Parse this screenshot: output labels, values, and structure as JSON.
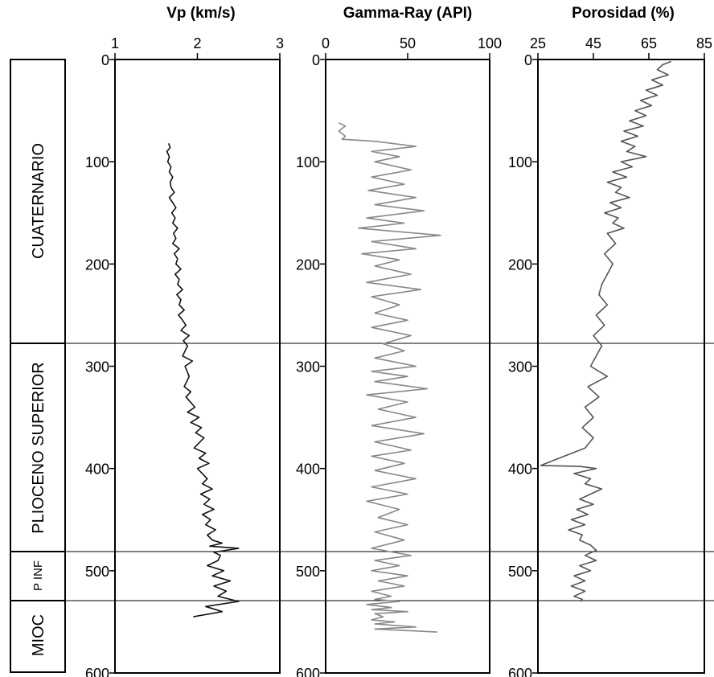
{
  "chart_data": [
    {
      "type": "line",
      "title": "Vp (km/s)",
      "xlim": [
        1,
        3
      ],
      "xticks": [
        "1",
        "2",
        "3"
      ],
      "ylim": [
        0,
        600
      ],
      "yticks": [
        "0",
        "100",
        "200",
        "300",
        "400",
        "500",
        "600"
      ],
      "y_inverted": true,
      "grid": false,
      "color": "#111111",
      "series": [
        {
          "x": [
            1.65,
            1.67,
            1.63,
            1.66,
            1.64,
            1.68,
            1.66,
            1.7,
            1.67,
            1.68,
            1.72,
            1.66,
            1.7,
            1.74,
            1.69,
            1.73,
            1.7,
            1.76,
            1.71,
            1.74,
            1.7,
            1.78,
            1.72,
            1.76,
            1.74,
            1.8,
            1.73,
            1.78,
            1.76,
            1.82,
            1.75,
            1.8,
            1.78,
            1.84,
            1.77,
            1.82,
            1.86,
            1.8,
            1.9,
            1.83,
            1.88,
            1.82,
            1.94,
            1.85,
            1.9,
            1.84,
            1.92,
            1.86,
            1.97,
            1.88,
            2.02,
            1.92,
            2.05,
            1.98,
            2.08,
            1.96,
            2.1,
            2.02,
            2.14,
            2.0,
            2.12,
            2.06,
            2.18,
            2.04,
            2.15,
            2.08,
            2.2,
            2.06,
            2.16,
            2.1,
            2.22,
            2.12,
            2.18,
            2.3,
            2.15,
            2.5,
            2.2,
            2.28,
            2.25,
            2.12,
            2.32,
            2.18,
            2.4,
            2.2,
            2.35,
            2.25,
            2.5,
            2.1,
            2.3,
            1.95
          ],
          "y": [
            82,
            86,
            90,
            95,
            100,
            105,
            110,
            115,
            120,
            125,
            130,
            135,
            140,
            145,
            150,
            155,
            160,
            165,
            170,
            175,
            180,
            185,
            190,
            195,
            200,
            205,
            210,
            215,
            220,
            225,
            230,
            235,
            240,
            245,
            250,
            255,
            260,
            265,
            270,
            275,
            280,
            290,
            295,
            300,
            310,
            320,
            325,
            330,
            340,
            345,
            350,
            355,
            360,
            365,
            370,
            380,
            385,
            390,
            395,
            400,
            410,
            415,
            420,
            425,
            430,
            435,
            440,
            445,
            450,
            455,
            460,
            465,
            470,
            473,
            476,
            478,
            482,
            485,
            490,
            495,
            500,
            505,
            510,
            515,
            520,
            525,
            530,
            535,
            540,
            545
          ]
        }
      ]
    },
    {
      "type": "line",
      "title": "Gamma-Ray (API)",
      "xlim": [
        0,
        100
      ],
      "xticks": [
        "0",
        "50",
        "100"
      ],
      "ylim": [
        0,
        600
      ],
      "yticks": [
        "0",
        "100",
        "200",
        "300",
        "400",
        "500",
        "600"
      ],
      "y_inverted": true,
      "grid": false,
      "color": "#888888",
      "series": [
        {
          "x": [
            8,
            12,
            8,
            12,
            10,
            30,
            55,
            28,
            45,
            30,
            52,
            28,
            48,
            26,
            55,
            30,
            60,
            25,
            48,
            20,
            70,
            28,
            55,
            22,
            45,
            30,
            52,
            25,
            58,
            28,
            45,
            30,
            50,
            28,
            52,
            35,
            48,
            30,
            55,
            28,
            50,
            30,
            62,
            25,
            50,
            32,
            55,
            28,
            60,
            30,
            52,
            28,
            48,
            30,
            55,
            28,
            50,
            25,
            45,
            32,
            50,
            30,
            48,
            28,
            52,
            30,
            45,
            28,
            50,
            32,
            48,
            28,
            40,
            30,
            45,
            25,
            40,
            28,
            50,
            30,
            35,
            28,
            42,
            30,
            55,
            30,
            68
          ],
          "y": [
            62,
            65,
            70,
            75,
            78,
            80,
            85,
            90,
            95,
            100,
            108,
            115,
            122,
            128,
            135,
            142,
            148,
            155,
            160,
            165,
            172,
            178,
            185,
            190,
            196,
            202,
            210,
            218,
            225,
            232,
            240,
            248,
            255,
            262,
            270,
            278,
            285,
            292,
            300,
            305,
            310,
            315,
            322,
            328,
            335,
            342,
            350,
            358,
            366,
            374,
            382,
            388,
            395,
            402,
            410,
            418,
            425,
            432,
            440,
            448,
            455,
            462,
            470,
            478,
            485,
            490,
            495,
            500,
            505,
            510,
            515,
            520,
            525,
            528,
            530,
            533,
            536,
            538,
            540,
            542,
            545,
            548,
            550,
            552,
            555,
            557,
            560
          ]
        }
      ]
    },
    {
      "type": "line",
      "title": "Porosidad (%)",
      "xlim": [
        25,
        85
      ],
      "xticks": [
        "25",
        "45",
        "65",
        "85"
      ],
      "ylim": [
        0,
        600
      ],
      "yticks": [
        "0",
        "100",
        "200",
        "300",
        "400",
        "500",
        "600"
      ],
      "y_inverted": true,
      "grid": false,
      "color": "#555555",
      "series": [
        {
          "x": [
            73,
            70,
            68,
            72,
            66,
            70,
            64,
            68,
            62,
            66,
            60,
            64,
            58,
            63,
            56,
            61,
            55,
            60,
            57,
            64,
            55,
            59,
            52,
            57,
            50,
            55,
            53,
            58,
            51,
            55,
            49,
            54,
            52,
            56,
            50,
            53,
            49,
            52,
            50,
            48,
            47,
            50,
            46,
            49,
            45,
            48,
            46,
            44,
            50,
            43,
            47,
            42,
            45,
            41,
            45,
            42,
            26,
            40,
            46,
            38,
            44,
            42,
            48,
            44,
            40,
            45,
            39,
            43,
            37,
            42,
            36,
            41,
            40,
            44,
            46,
            42,
            46,
            40,
            44,
            38,
            42,
            37,
            42,
            38,
            41,
            40
          ],
          "y": [
            2,
            5,
            10,
            15,
            20,
            25,
            30,
            35,
            40,
            45,
            50,
            55,
            60,
            65,
            70,
            75,
            80,
            85,
            90,
            95,
            100,
            105,
            110,
            115,
            120,
            125,
            130,
            135,
            140,
            145,
            150,
            155,
            160,
            165,
            170,
            180,
            190,
            200,
            210,
            220,
            230,
            240,
            250,
            260,
            270,
            280,
            290,
            300,
            310,
            320,
            330,
            340,
            350,
            360,
            370,
            380,
            397,
            398,
            400,
            405,
            410,
            415,
            420,
            425,
            430,
            435,
            440,
            445,
            450,
            455,
            460,
            465,
            470,
            475,
            480,
            485,
            490,
            495,
            500,
            505,
            510,
            515,
            520,
            525,
            528,
            530
          ]
        }
      ]
    }
  ],
  "stratigraphy": [
    {
      "label": "CUATERNARIO",
      "top": 0,
      "base": 272
    },
    {
      "label": "PLIOCENO SUPERIOR",
      "top": 272,
      "base": 475
    },
    {
      "label": "P INF",
      "top": 475,
      "base": 523
    },
    {
      "label": "MIOC",
      "top": 523,
      "base": 600
    }
  ]
}
